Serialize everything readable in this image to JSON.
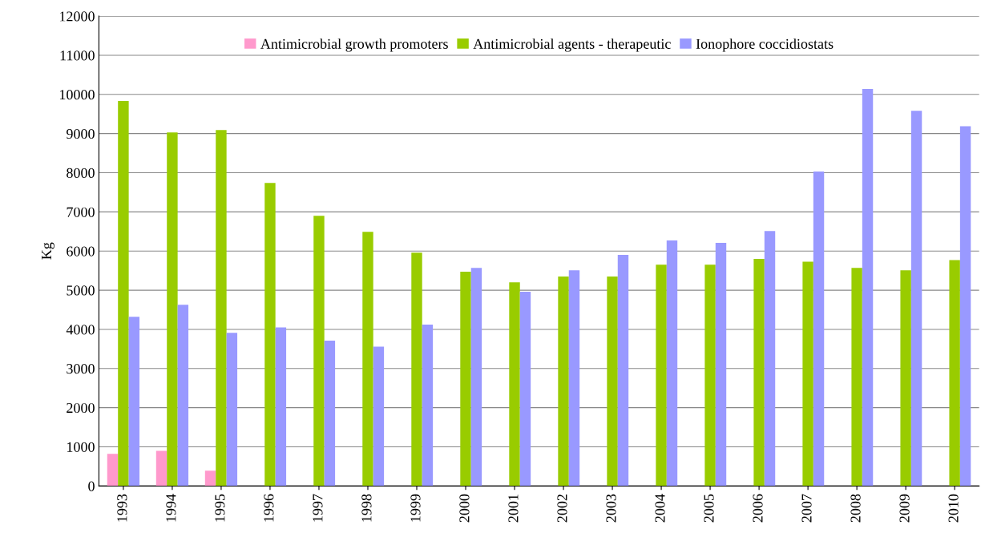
{
  "chart_data": {
    "type": "bar",
    "ylabel": "Kg",
    "categories": [
      "1993",
      "1994",
      "1995",
      "1996",
      "1997",
      "1998",
      "1999",
      "2000",
      "2001",
      "2002",
      "2003",
      "2004",
      "2005",
      "2006",
      "2007",
      "2008",
      "2009",
      "2010"
    ],
    "series": [
      {
        "name": "Antimicrobial growth promoters",
        "color": "#ff99cc",
        "values": [
          820,
          900,
          390,
          null,
          null,
          null,
          null,
          null,
          null,
          null,
          null,
          null,
          null,
          null,
          null,
          null,
          null,
          null
        ]
      },
      {
        "name": "Antimicrobial agents - therapeutic",
        "color": "#99cc00",
        "values": [
          9830,
          9030,
          9090,
          7740,
          6900,
          6490,
          5960,
          5470,
          5200,
          5350,
          5350,
          5650,
          5650,
          5800,
          5730,
          5570,
          5510,
          5770
        ]
      },
      {
        "name": "Ionophore coccidiostats",
        "color": "#9999ff",
        "values": [
          4320,
          4630,
          3910,
          4050,
          3710,
          3560,
          4120,
          5570,
          4960,
          5510,
          5900,
          6270,
          6210,
          6510,
          8030,
          10140,
          9580,
          9190
        ]
      }
    ],
    "ylim": [
      0,
      12000
    ],
    "yticks": [
      0,
      1000,
      2000,
      3000,
      4000,
      5000,
      6000,
      7000,
      8000,
      9000,
      10000,
      11000,
      12000
    ],
    "grid": "y",
    "legend": "top"
  }
}
